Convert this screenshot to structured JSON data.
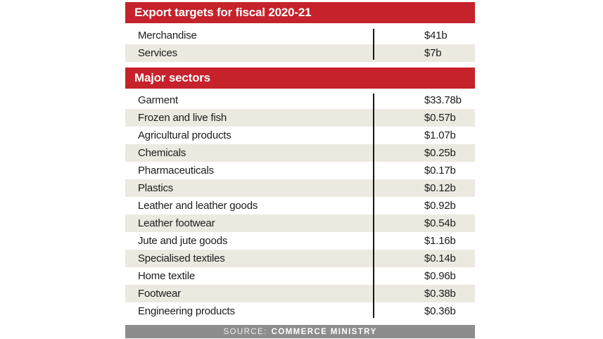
{
  "colors": {
    "header_red": "#c5222c",
    "row_beige": "#ece9e0",
    "footer_gray": "#8d8d8d",
    "divider_black": "#161616",
    "text_dark": "#1b1b1b",
    "header_text": "#ffffff"
  },
  "panel": {
    "sections": [
      {
        "title": "Export targets for fiscal 2020-21",
        "rows": [
          {
            "label": "Merchandise",
            "value": "$41b"
          },
          {
            "label": "Services",
            "value": "$7b"
          }
        ]
      },
      {
        "title": "Major sectors",
        "rows": [
          {
            "label": "Garment",
            "value": "$33.78b"
          },
          {
            "label": "Frozen and live fish",
            "value": "$0.57b"
          },
          {
            "label": "Agricultural products",
            "value": "$1.07b"
          },
          {
            "label": "Chemicals",
            "value": "$0.25b"
          },
          {
            "label": "Pharmaceuticals",
            "value": "$0.17b"
          },
          {
            "label": "Plastics",
            "value": "$0.12b"
          },
          {
            "label": "Leather and leather goods",
            "value": "$0.92b"
          },
          {
            "label": "Leather footwear",
            "value": "$0.54b"
          },
          {
            "label": "Jute and jute goods",
            "value": "$1.16b"
          },
          {
            "label": "Specialised textiles",
            "value": "$0.14b"
          },
          {
            "label": "Home textile",
            "value": "$0.96b"
          },
          {
            "label": "Footwear",
            "value": "$0.38b"
          },
          {
            "label": "Engineering products",
            "value": "$0.36b"
          }
        ]
      }
    ],
    "footer": {
      "source_label": "SOURCE:",
      "source_value": "COMMERCE MINISTRY"
    }
  },
  "chart_data": {
    "type": "table",
    "title": "Export targets for fiscal 2020-21",
    "unit": "USD billion",
    "sections": [
      {
        "title": "Export targets for fiscal 2020-21",
        "categories": [
          "Merchandise",
          "Services"
        ],
        "values": [
          41,
          7
        ],
        "value_labels": [
          "$41b",
          "$7b"
        ]
      },
      {
        "title": "Major sectors",
        "categories": [
          "Garment",
          "Frozen and live fish",
          "Agricultural products",
          "Chemicals",
          "Pharmaceuticals",
          "Plastics",
          "Leather and leather goods",
          "Leather footwear",
          "Jute and jute goods",
          "Specialised textiles",
          "Home textile",
          "Footwear",
          "Engineering products"
        ],
        "values": [
          33.78,
          0.57,
          1.07,
          0.25,
          0.17,
          0.12,
          0.92,
          0.54,
          1.16,
          0.14,
          0.96,
          0.38,
          0.36
        ],
        "value_labels": [
          "$33.78b",
          "$0.57b",
          "$1.07b",
          "$0.25b",
          "$0.17b",
          "$0.12b",
          "$0.92b",
          "$0.54b",
          "$1.16b",
          "$0.14b",
          "$0.96b",
          "$0.38b",
          "$0.36b"
        ]
      }
    ],
    "source": "SOURCE: COMMERCE MINISTRY",
    "layout": {
      "legend": false,
      "grid": false,
      "row_striping": true
    }
  }
}
